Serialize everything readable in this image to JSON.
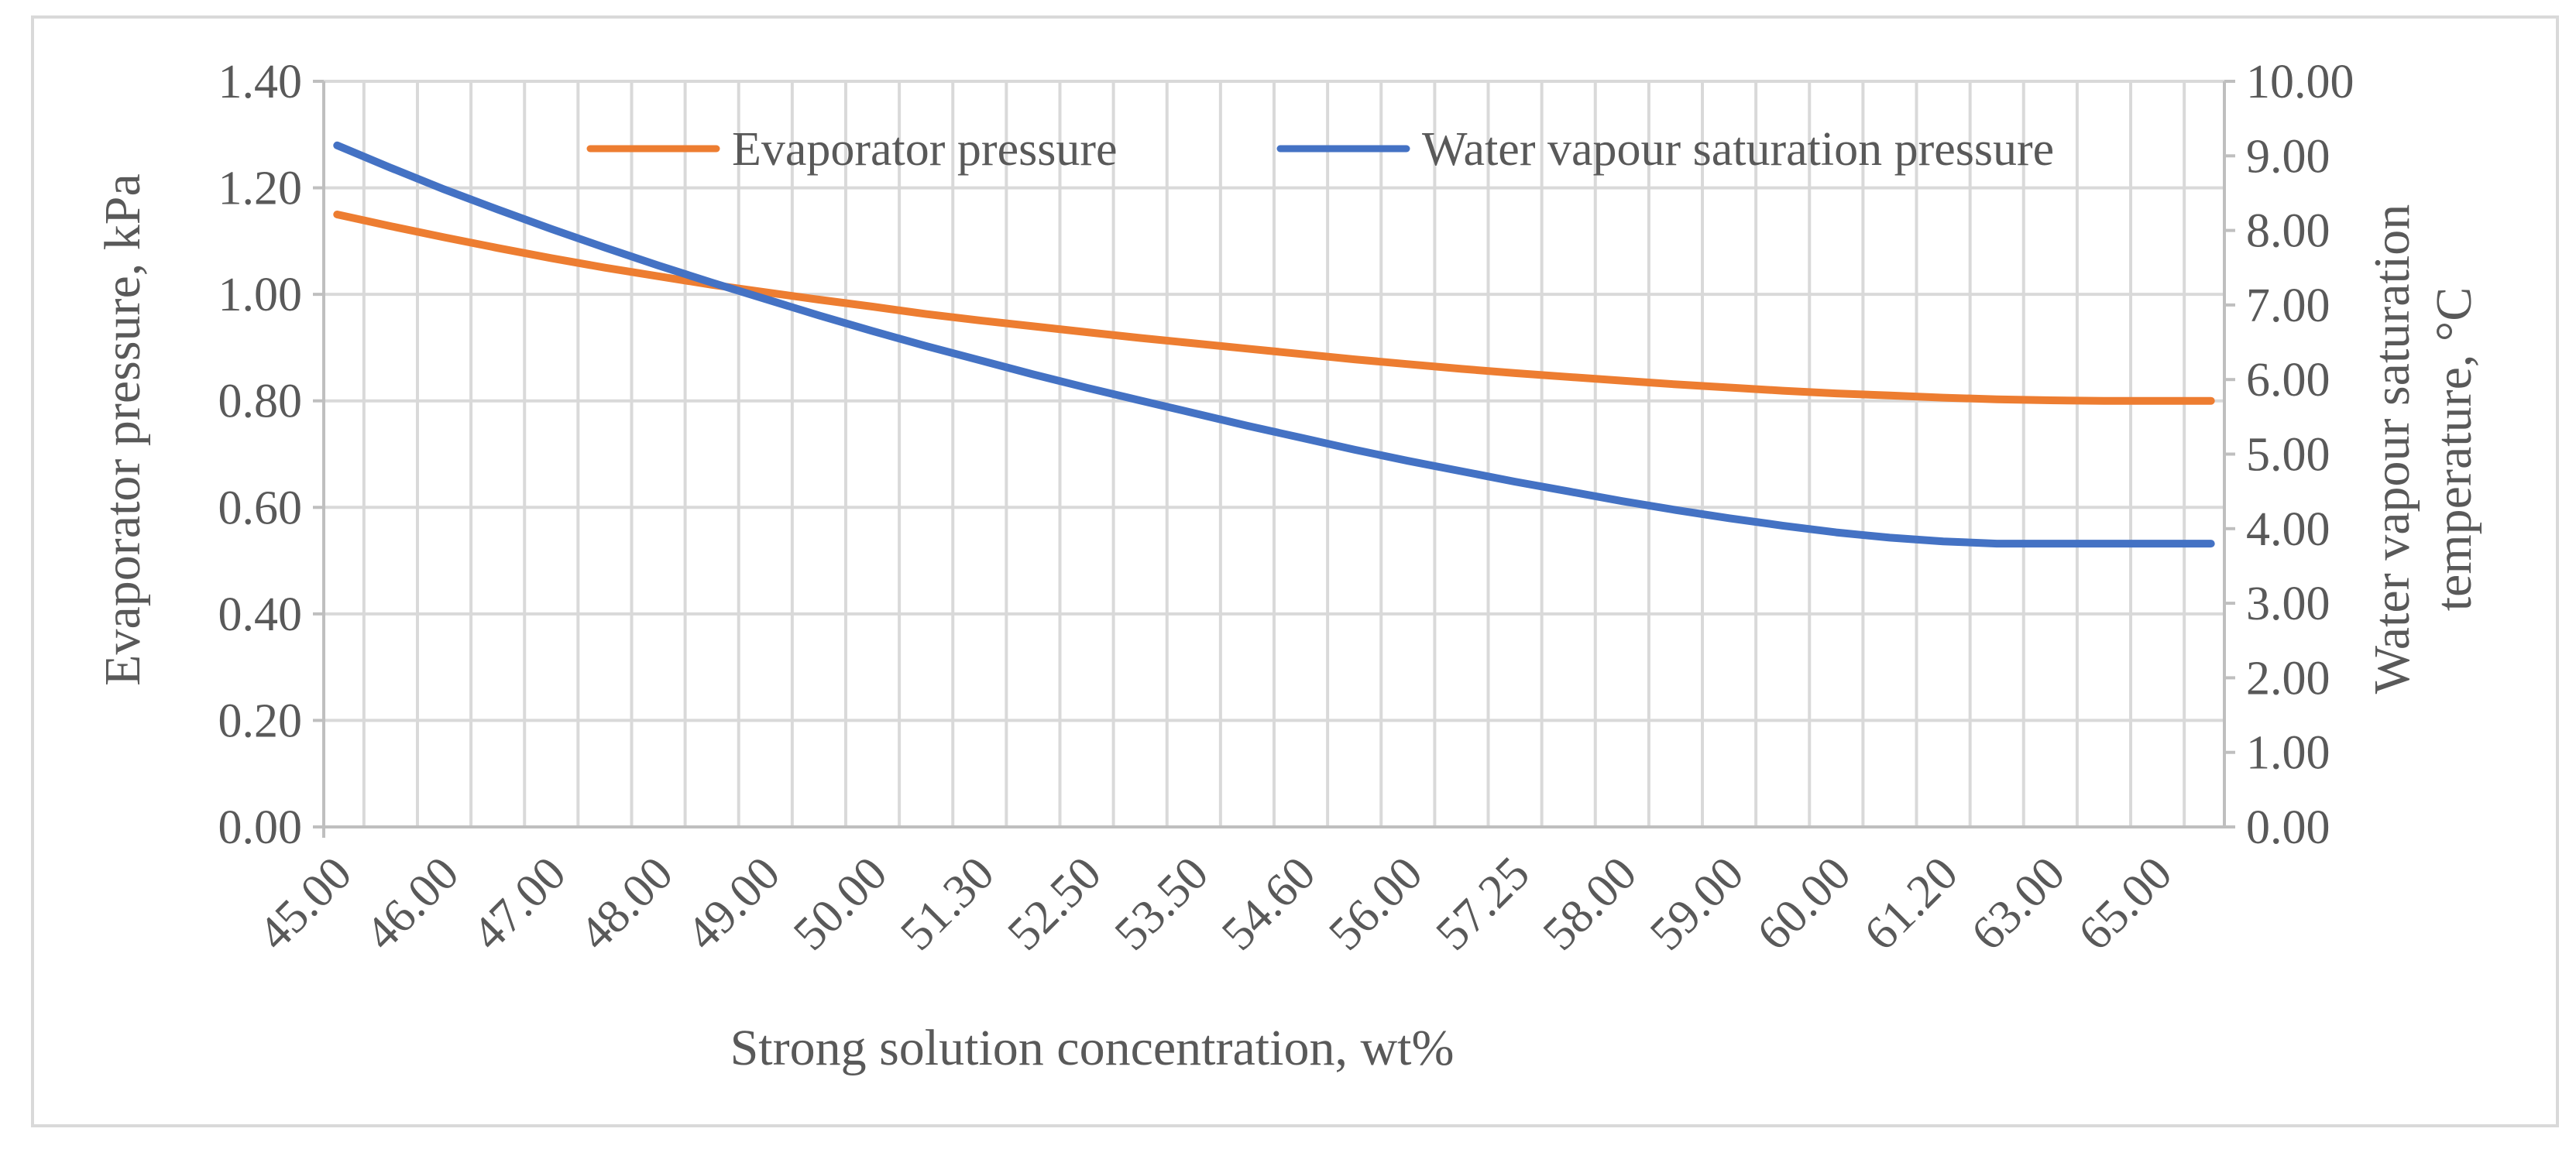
{
  "chart_data": {
    "type": "line",
    "title": "",
    "xlabel": "Strong solution concentration, wt%",
    "ylabel_left": "Evaporator pressure, kPa",
    "ylabel_right_lines": [
      "Water vapour saturation",
      "temperature, °C"
    ],
    "ylim_left": [
      0,
      1.4
    ],
    "ylim_right": [
      0,
      10
    ],
    "yticks_left": [
      "0.00",
      "0.20",
      "0.40",
      "0.60",
      "0.80",
      "1.00",
      "1.20",
      "1.40"
    ],
    "yticks_right": [
      "0.00",
      "1.00",
      "2.00",
      "3.00",
      "4.00",
      "5.00",
      "6.00",
      "7.00",
      "8.00",
      "9.00",
      "10.00"
    ],
    "categories": [
      "45.00",
      "45.50",
      "46.00",
      "46.50",
      "47.00",
      "47.50",
      "48.00",
      "48.50",
      "49.00",
      "49.50",
      "50.00",
      "50.70",
      "51.30",
      "52.00",
      "52.50",
      "53.00",
      "53.50",
      "54.00",
      "54.60",
      "55.30",
      "56.00",
      "56.60",
      "57.25",
      "57.60",
      "58.00",
      "58.50",
      "59.00",
      "59.50",
      "60.00",
      "60.60",
      "61.20",
      "62.00",
      "63.00",
      "64.00",
      "65.00",
      "66.00"
    ],
    "labeled_ticks": [
      "45.00",
      "46.00",
      "47.00",
      "48.00",
      "49.00",
      "50.00",
      "51.30",
      "52.50",
      "53.50",
      "54.60",
      "56.00",
      "57.25",
      "58.00",
      "59.00",
      "60.00",
      "61.20",
      "63.00",
      "65.00"
    ],
    "legend_position": "top",
    "grid": true,
    "series": [
      {
        "name": "Evaporator pressure",
        "axis": "left",
        "color": "#ED7D31",
        "values": [
          1.15,
          1.128,
          1.107,
          1.087,
          1.068,
          1.05,
          1.034,
          1.018,
          1.004,
          0.99,
          0.977,
          0.963,
          0.951,
          0.94,
          0.929,
          0.918,
          0.908,
          0.898,
          0.888,
          0.878,
          0.869,
          0.86,
          0.852,
          0.845,
          0.838,
          0.831,
          0.825,
          0.819,
          0.814,
          0.81,
          0.806,
          0.803,
          0.801,
          0.8,
          0.8,
          0.8
        ]
      },
      {
        "name": "Water vapour saturation pressure",
        "axis": "right",
        "color": "#4472C4",
        "values": [
          9.14,
          8.84,
          8.55,
          8.28,
          8.02,
          7.77,
          7.53,
          7.3,
          7.08,
          6.86,
          6.65,
          6.45,
          6.26,
          6.07,
          5.89,
          5.72,
          5.55,
          5.38,
          5.22,
          5.06,
          4.91,
          4.77,
          4.63,
          4.5,
          4.37,
          4.25,
          4.14,
          4.04,
          3.95,
          3.88,
          3.83,
          3.8,
          3.8,
          3.8,
          3.8,
          3.8
        ]
      }
    ]
  }
}
